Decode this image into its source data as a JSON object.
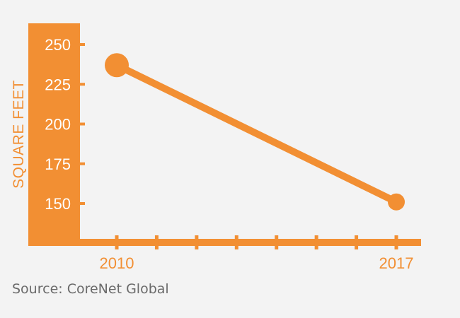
{
  "chart_data": {
    "type": "line",
    "title": "",
    "ylabel": "SQUARE FEET",
    "xlabel": "",
    "x_tick_labels": [
      "2010",
      "2017"
    ],
    "y_ticks": [
      150,
      175,
      200,
      225,
      250
    ],
    "ylim": [
      125,
      262
    ],
    "xlim": [
      2010,
      2017
    ],
    "series": [
      {
        "x": [
          2010,
          2017
        ],
        "values": [
          237,
          151
        ]
      }
    ],
    "grid": false,
    "colors": {
      "accent": "#f28f33",
      "background": "#f3f3f3",
      "axis_text": "#ffffff",
      "source_text": "#6a6a6a"
    }
  },
  "source": "Source: CoreNet Global"
}
